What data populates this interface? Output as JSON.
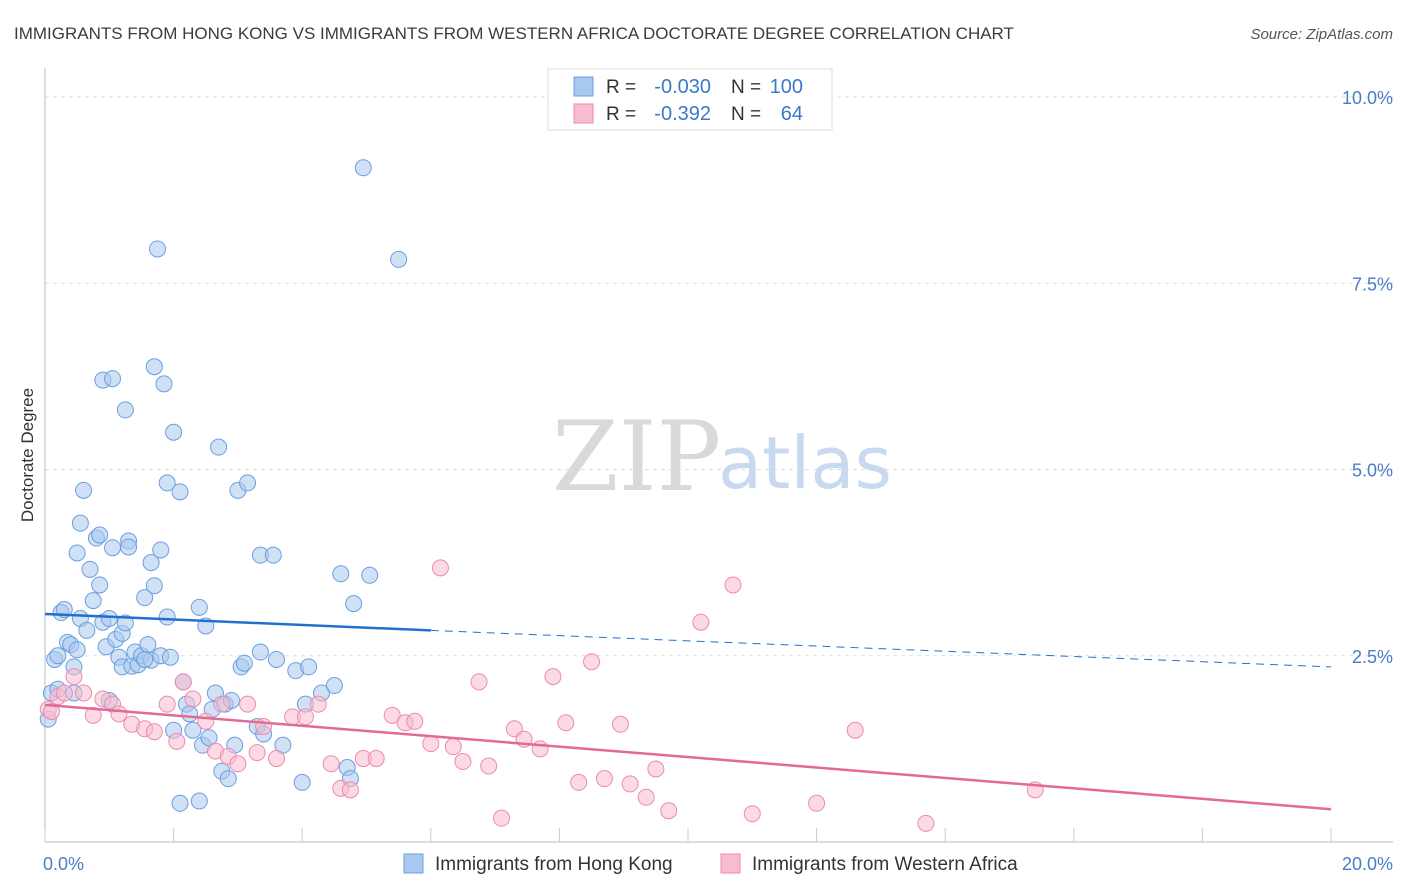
{
  "header": {
    "title": "IMMIGRANTS FROM HONG KONG VS IMMIGRANTS FROM WESTERN AFRICA DOCTORATE DEGREE CORRELATION CHART",
    "source": "Source: ZipAtlas.com"
  },
  "watermark": {
    "zip": "ZIP",
    "atlas": "atlas"
  },
  "legend": {
    "rows": [
      {
        "r_label": "R =",
        "r_value": "-0.030",
        "n_label": "N =",
        "n_value": "100"
      },
      {
        "r_label": "R =",
        "r_value": "-0.392",
        "n_label": "N =",
        "n_value": "64"
      }
    ]
  },
  "colors": {
    "blue_fill": "#a9c8ef",
    "blue_stroke": "#6a9fe0",
    "blue_line": "#2170d0",
    "pink_fill": "#f7bccf",
    "pink_stroke": "#ee8aad",
    "pink_line": "#e46a96"
  },
  "chart_data": {
    "type": "scatter",
    "title": "IMMIGRANTS FROM HONG KONG VS IMMIGRANTS FROM WESTERN AFRICA DOCTORATE DEGREE CORRELATION CHART",
    "xlabel": "",
    "ylabel": "Doctorate Degree",
    "xlim": [
      0,
      20
    ],
    "ylim": [
      0,
      10.5
    ],
    "x_ticks": [
      "0.0%",
      "20.0%"
    ],
    "y_ticks": [
      {
        "value": 2.5,
        "label": "2.5%"
      },
      {
        "value": 5.0,
        "label": "5.0%"
      },
      {
        "value": 7.5,
        "label": "7.5%"
      },
      {
        "value": 10.0,
        "label": "10.0%"
      }
    ],
    "grid": true,
    "legend_position": "top-center",
    "series": [
      {
        "name": "Immigrants from Hong Kong",
        "r": -0.03,
        "n": 100,
        "trend": {
          "x0": 0,
          "y0": 3.06,
          "x_solid_end": 6.0,
          "y_solid_end": 2.84,
          "x1": 20,
          "y1": 2.35
        },
        "points": [
          [
            0.05,
            1.65
          ],
          [
            0.1,
            2.0
          ],
          [
            0.15,
            2.45
          ],
          [
            0.2,
            2.5
          ],
          [
            0.25,
            3.08
          ],
          [
            0.3,
            3.12
          ],
          [
            0.35,
            2.68
          ],
          [
            0.4,
            2.65
          ],
          [
            0.45,
            2.0
          ],
          [
            0.5,
            2.58
          ],
          [
            0.55,
            3.0
          ],
          [
            0.5,
            3.88
          ],
          [
            0.55,
            4.28
          ],
          [
            0.6,
            4.72
          ],
          [
            0.65,
            2.84
          ],
          [
            0.7,
            3.66
          ],
          [
            0.75,
            3.24
          ],
          [
            0.8,
            4.08
          ],
          [
            0.85,
            4.12
          ],
          [
            0.9,
            6.2
          ],
          [
            0.85,
            3.45
          ],
          [
            0.9,
            2.95
          ],
          [
            0.95,
            2.62
          ],
          [
            1.0,
            1.9
          ],
          [
            1.0,
            3.0
          ],
          [
            1.05,
            3.95
          ],
          [
            1.05,
            6.22
          ],
          [
            1.1,
            2.72
          ],
          [
            1.15,
            2.48
          ],
          [
            1.2,
            2.8
          ],
          [
            1.2,
            2.35
          ],
          [
            1.25,
            2.94
          ],
          [
            1.25,
            5.8
          ],
          [
            1.3,
            4.04
          ],
          [
            1.3,
            3.96
          ],
          [
            1.35,
            2.36
          ],
          [
            1.4,
            2.55
          ],
          [
            1.45,
            2.38
          ],
          [
            1.5,
            2.5
          ],
          [
            1.55,
            3.28
          ],
          [
            1.6,
            2.65
          ],
          [
            1.65,
            2.44
          ],
          [
            1.65,
            3.75
          ],
          [
            1.7,
            6.38
          ],
          [
            1.7,
            3.44
          ],
          [
            1.75,
            7.96
          ],
          [
            1.8,
            2.5
          ],
          [
            1.8,
            3.92
          ],
          [
            1.85,
            6.15
          ],
          [
            1.9,
            4.82
          ],
          [
            1.9,
            3.02
          ],
          [
            1.95,
            2.48
          ],
          [
            2.0,
            5.5
          ],
          [
            2.0,
            1.5
          ],
          [
            2.1,
            4.7
          ],
          [
            2.2,
            1.85
          ],
          [
            2.15,
            2.15
          ],
          [
            2.25,
            1.72
          ],
          [
            2.3,
            1.5
          ],
          [
            2.4,
            3.15
          ],
          [
            2.45,
            1.3
          ],
          [
            2.5,
            2.9
          ],
          [
            2.55,
            1.4
          ],
          [
            2.6,
            1.78
          ],
          [
            2.65,
            2.0
          ],
          [
            2.7,
            5.3
          ],
          [
            2.75,
            0.95
          ],
          [
            2.8,
            1.85
          ],
          [
            2.85,
            0.85
          ],
          [
            2.9,
            1.9
          ],
          [
            2.95,
            1.3
          ],
          [
            3.0,
            4.72
          ],
          [
            3.05,
            2.35
          ],
          [
            3.1,
            2.4
          ],
          [
            3.15,
            4.82
          ],
          [
            3.3,
            1.55
          ],
          [
            3.35,
            2.55
          ],
          [
            3.35,
            3.85
          ],
          [
            3.4,
            1.45
          ],
          [
            3.55,
            3.85
          ],
          [
            3.6,
            2.45
          ],
          [
            3.7,
            1.3
          ],
          [
            3.9,
            2.3
          ],
          [
            4.1,
            2.35
          ],
          [
            4.0,
            0.8
          ],
          [
            4.05,
            1.85
          ],
          [
            4.3,
            2.0
          ],
          [
            4.5,
            2.1
          ],
          [
            4.6,
            3.6
          ],
          [
            4.7,
            1.0
          ],
          [
            4.75,
            0.85
          ],
          [
            4.8,
            3.2
          ],
          [
            4.95,
            9.05
          ],
          [
            5.05,
            3.58
          ],
          [
            5.5,
            7.82
          ],
          [
            2.4,
            0.55
          ],
          [
            2.1,
            0.52
          ],
          [
            0.45,
            2.35
          ],
          [
            0.2,
            2.05
          ],
          [
            1.55,
            2.45
          ]
        ]
      },
      {
        "name": "Immigrants from Western Africa",
        "r": -0.392,
        "n": 64,
        "trend": {
          "x0": 0,
          "y0": 1.84,
          "x1": 20,
          "y1": 0.44
        },
        "points": [
          [
            0.05,
            1.78
          ],
          [
            0.1,
            1.75
          ],
          [
            0.2,
            1.95
          ],
          [
            0.3,
            2.0
          ],
          [
            0.45,
            2.22
          ],
          [
            0.6,
            2.0
          ],
          [
            0.75,
            1.7
          ],
          [
            0.9,
            1.92
          ],
          [
            1.05,
            1.85
          ],
          [
            1.15,
            1.72
          ],
          [
            1.35,
            1.58
          ],
          [
            1.55,
            1.52
          ],
          [
            1.7,
            1.48
          ],
          [
            1.9,
            1.85
          ],
          [
            2.05,
            1.35
          ],
          [
            2.15,
            2.15
          ],
          [
            2.3,
            1.92
          ],
          [
            2.5,
            1.62
          ],
          [
            2.65,
            1.22
          ],
          [
            2.75,
            1.85
          ],
          [
            2.85,
            1.15
          ],
          [
            3.0,
            1.05
          ],
          [
            3.15,
            1.85
          ],
          [
            3.3,
            1.2
          ],
          [
            3.4,
            1.55
          ],
          [
            3.6,
            1.12
          ],
          [
            3.85,
            1.68
          ],
          [
            4.05,
            1.68
          ],
          [
            4.25,
            1.85
          ],
          [
            4.45,
            1.05
          ],
          [
            4.6,
            0.72
          ],
          [
            4.75,
            0.7
          ],
          [
            4.95,
            1.12
          ],
          [
            5.15,
            1.12
          ],
          [
            5.4,
            1.7
          ],
          [
            5.6,
            1.6
          ],
          [
            5.75,
            1.62
          ],
          [
            6.0,
            1.32
          ],
          [
            6.15,
            3.68
          ],
          [
            6.35,
            1.28
          ],
          [
            6.5,
            1.08
          ],
          [
            6.75,
            2.15
          ],
          [
            6.9,
            1.02
          ],
          [
            7.1,
            0.32
          ],
          [
            7.3,
            1.52
          ],
          [
            7.45,
            1.38
          ],
          [
            7.7,
            1.25
          ],
          [
            7.9,
            2.22
          ],
          [
            8.1,
            1.6
          ],
          [
            8.3,
            0.8
          ],
          [
            8.5,
            2.42
          ],
          [
            8.7,
            0.85
          ],
          [
            8.95,
            1.58
          ],
          [
            9.1,
            0.78
          ],
          [
            9.35,
            0.6
          ],
          [
            9.5,
            0.98
          ],
          [
            9.7,
            0.42
          ],
          [
            10.2,
            2.95
          ],
          [
            10.7,
            3.45
          ],
          [
            11.0,
            0.38
          ],
          [
            12.0,
            0.52
          ],
          [
            12.6,
            1.5
          ],
          [
            13.7,
            0.25
          ],
          [
            15.4,
            0.7
          ]
        ]
      }
    ]
  },
  "bottom_legend": {
    "items": [
      {
        "label": "Immigrants from Hong Kong"
      },
      {
        "label": "Immigrants from Western Africa"
      }
    ]
  }
}
